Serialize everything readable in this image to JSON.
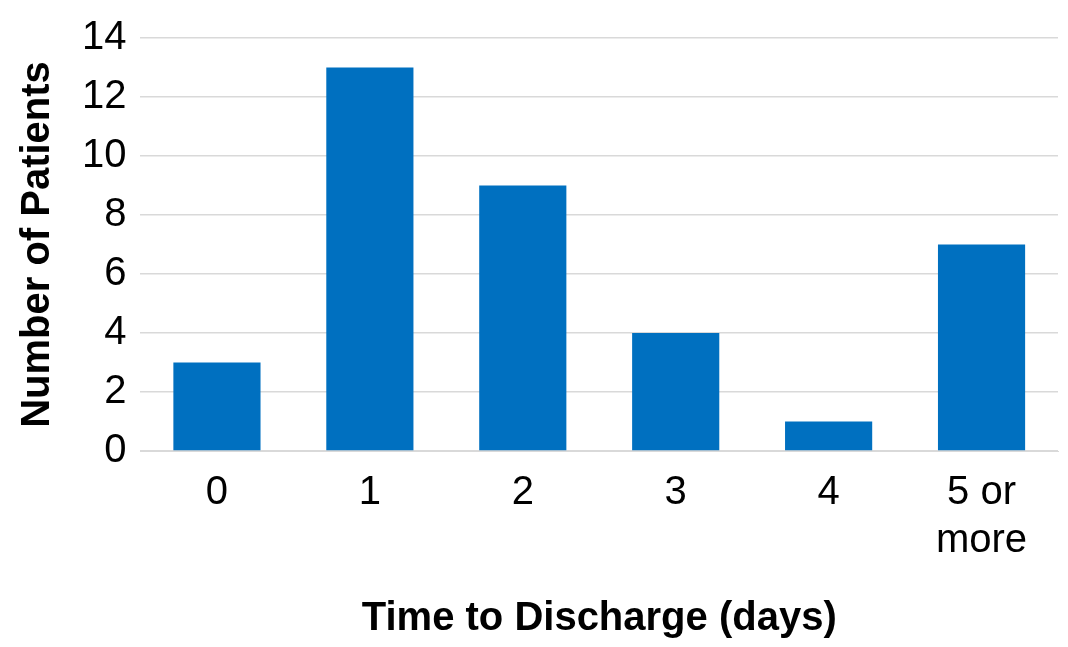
{
  "chart_data": {
    "type": "bar",
    "xlabel": "Time to Discharge (days)",
    "ylabel": "Number of Patients",
    "categories": [
      "0",
      "1",
      "2",
      "3",
      "4",
      "5 or more"
    ],
    "values": [
      3,
      13,
      9,
      4,
      1,
      7
    ],
    "color": "#0070c0",
    "ylim": [
      0,
      14
    ],
    "yticks": [
      0,
      2,
      4,
      6,
      8,
      10,
      12,
      14
    ],
    "grid": "y"
  }
}
